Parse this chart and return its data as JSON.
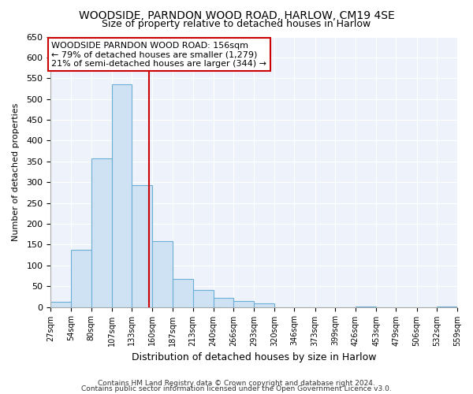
{
  "title": "WOODSIDE, PARNDON WOOD ROAD, HARLOW, CM19 4SE",
  "subtitle": "Size of property relative to detached houses in Harlow",
  "xlabel": "Distribution of detached houses by size in Harlow",
  "ylabel": "Number of detached properties",
  "bar_edges": [
    27,
    54,
    80,
    107,
    133,
    160,
    187,
    213,
    240,
    266,
    293,
    320,
    346,
    373,
    399,
    426,
    453,
    479,
    506,
    532,
    559
  ],
  "bar_heights": [
    12,
    137,
    358,
    535,
    293,
    158,
    67,
    40,
    22,
    15,
    8,
    0,
    0,
    0,
    0,
    1,
    0,
    0,
    0,
    1
  ],
  "bar_color": "#cfe2f3",
  "bar_edge_color": "#6baed6",
  "vline_x": 156,
  "vline_color": "#cc0000",
  "annotation_text_line1": "WOODSIDE PARNDON WOOD ROAD: 156sqm",
  "annotation_text_line2": "← 79% of detached houses are smaller (1,279)",
  "annotation_text_line3": "21% of semi-detached houses are larger (344) →",
  "ylim": [
    0,
    650
  ],
  "yticks": [
    0,
    50,
    100,
    150,
    200,
    250,
    300,
    350,
    400,
    450,
    500,
    550,
    600,
    650
  ],
  "tick_labels": [
    "27sqm",
    "54sqm",
    "80sqm",
    "107sqm",
    "133sqm",
    "160sqm",
    "187sqm",
    "213sqm",
    "240sqm",
    "266sqm",
    "293sqm",
    "320sqm",
    "346sqm",
    "373sqm",
    "399sqm",
    "426sqm",
    "453sqm",
    "479sqm",
    "506sqm",
    "532sqm",
    "559sqm"
  ],
  "footer1": "Contains HM Land Registry data © Crown copyright and database right 2024.",
  "footer2": "Contains public sector information licensed under the Open Government Licence v3.0.",
  "bg_color": "#ffffff",
  "plot_bg_color": "#eef2fb",
  "grid_color": "#ffffff",
  "title_fontsize": 10,
  "subtitle_fontsize": 9,
  "xlabel_fontsize": 9,
  "ylabel_fontsize": 8,
  "tick_fontsize": 7,
  "annotation_fontsize": 8,
  "footer_fontsize": 6.5
}
